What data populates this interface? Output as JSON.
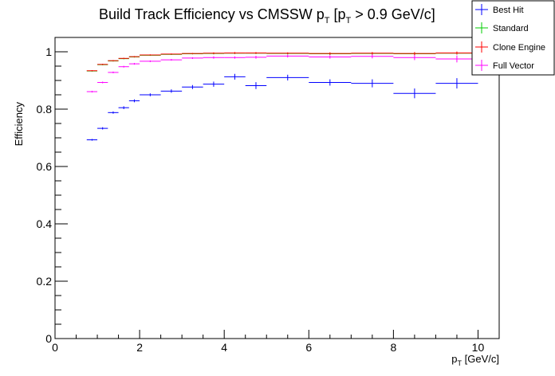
{
  "chart_data": {
    "type": "scatter",
    "title_main": "Build Track Efficiency vs CMSSW p",
    "title_sub1": "T",
    "title_mid": " [p",
    "title_sub2": "T",
    "title_tail": " > 0.9 GeV/c]",
    "xlabel_main": "p",
    "xlabel_sub": "T",
    "xlabel_tail": " [GeV/c]",
    "ylabel": "Efficiency",
    "xlim": [
      0,
      10.5
    ],
    "ylim": [
      0,
      1.05
    ],
    "x_ticks": [
      0,
      2,
      4,
      6,
      8,
      10
    ],
    "x_tick_labels": [
      "0",
      "2",
      "4",
      "6",
      "8",
      "10"
    ],
    "y_ticks": [
      0,
      0.2,
      0.4,
      0.6,
      0.8,
      1
    ],
    "y_tick_labels": [
      "0",
      "0.2",
      "0.4",
      "0.6",
      "0.8",
      "1"
    ],
    "legend_position": "top-right",
    "legend": [
      {
        "label": "Best Hit",
        "color": "#0000ff"
      },
      {
        "label": "Standard",
        "color": "#00cc00"
      },
      {
        "label": "Clone Engine",
        "color": "#ff0000"
      },
      {
        "label": "Full Vector",
        "color": "#ff00ff"
      }
    ],
    "bins": [
      {
        "lo": 0.75,
        "hi": 1.0
      },
      {
        "lo": 1.0,
        "hi": 1.25
      },
      {
        "lo": 1.25,
        "hi": 1.5
      },
      {
        "lo": 1.5,
        "hi": 1.75
      },
      {
        "lo": 1.75,
        "hi": 2.0
      },
      {
        "lo": 2.0,
        "hi": 2.5
      },
      {
        "lo": 2.5,
        "hi": 3.0
      },
      {
        "lo": 3.0,
        "hi": 3.5
      },
      {
        "lo": 3.5,
        "hi": 4.0
      },
      {
        "lo": 4.0,
        "hi": 4.5
      },
      {
        "lo": 4.5,
        "hi": 5.0
      },
      {
        "lo": 5.0,
        "hi": 6.0
      },
      {
        "lo": 6.0,
        "hi": 7.0
      },
      {
        "lo": 7.0,
        "hi": 8.0
      },
      {
        "lo": 8.0,
        "hi": 9.0
      },
      {
        "lo": 9.0,
        "hi": 10.0
      }
    ],
    "series": [
      {
        "name": "Best Hit",
        "color": "#0000ff",
        "values": [
          0.693,
          0.733,
          0.788,
          0.805,
          0.829,
          0.85,
          0.863,
          0.877,
          0.887,
          0.913,
          0.882,
          0.91,
          0.893,
          0.89,
          0.855,
          0.89
        ],
        "errors": [
          0.003,
          0.004,
          0.004,
          0.005,
          0.005,
          0.005,
          0.006,
          0.007,
          0.009,
          0.01,
          0.012,
          0.01,
          0.011,
          0.014,
          0.017,
          0.018
        ]
      },
      {
        "name": "Standard",
        "color": "#00cc00",
        "values": [
          0.933,
          0.955,
          0.968,
          0.976,
          0.982,
          0.988,
          0.991,
          0.993,
          0.994,
          0.995,
          0.995,
          0.994,
          0.993,
          0.994,
          0.993,
          0.995
        ],
        "errors": [
          0.002,
          0.002,
          0.002,
          0.002,
          0.002,
          0.002,
          0.002,
          0.002,
          0.003,
          0.003,
          0.003,
          0.003,
          0.004,
          0.004,
          0.005,
          0.005
        ]
      },
      {
        "name": "Clone Engine",
        "color": "#ff0000",
        "values": [
          0.934,
          0.956,
          0.969,
          0.977,
          0.983,
          0.989,
          0.992,
          0.994,
          0.995,
          0.996,
          0.996,
          0.995,
          0.994,
          0.995,
          0.994,
          0.996
        ],
        "errors": [
          0.002,
          0.002,
          0.002,
          0.002,
          0.002,
          0.002,
          0.002,
          0.002,
          0.003,
          0.003,
          0.003,
          0.003,
          0.004,
          0.004,
          0.005,
          0.005
        ]
      },
      {
        "name": "Full Vector",
        "color": "#ff00ff",
        "values": [
          0.861,
          0.893,
          0.928,
          0.948,
          0.958,
          0.967,
          0.972,
          0.978,
          0.98,
          0.98,
          0.981,
          0.985,
          0.982,
          0.984,
          0.98,
          0.975
        ],
        "errors": [
          0.003,
          0.003,
          0.003,
          0.003,
          0.003,
          0.003,
          0.003,
          0.003,
          0.004,
          0.004,
          0.005,
          0.005,
          0.006,
          0.007,
          0.009,
          0.012
        ]
      }
    ]
  }
}
